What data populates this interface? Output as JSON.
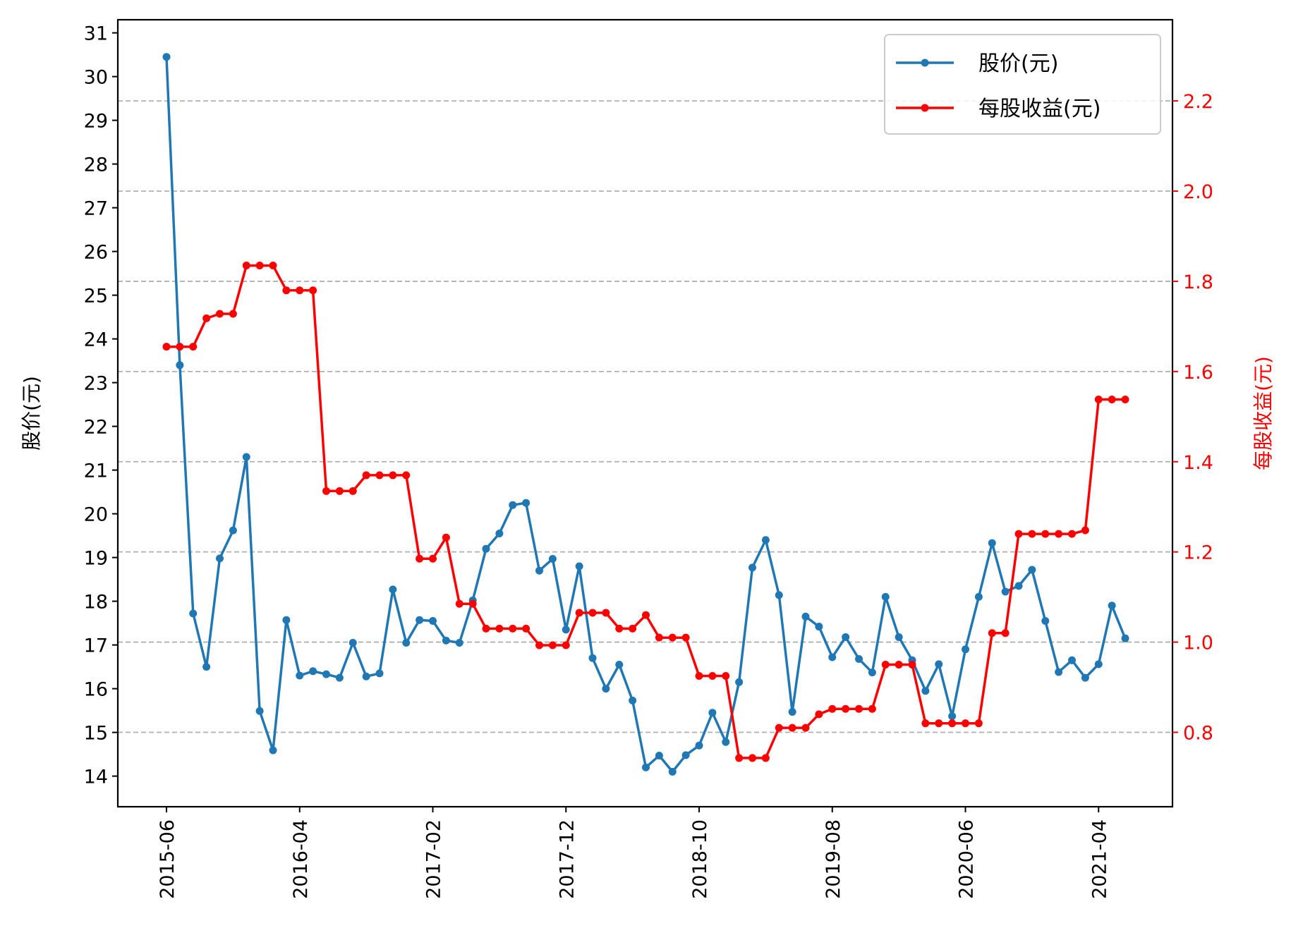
{
  "chart_data": {
    "type": "line",
    "x": [
      "2015-06",
      "2015-07",
      "2015-08",
      "2015-09",
      "2015-10",
      "2015-11",
      "2015-12",
      "2016-01",
      "2016-02",
      "2016-03",
      "2016-04",
      "2016-05",
      "2016-06",
      "2016-07",
      "2016-08",
      "2016-09",
      "2016-10",
      "2016-11",
      "2016-12",
      "2017-01",
      "2017-02",
      "2017-03",
      "2017-04",
      "2017-05",
      "2017-06",
      "2017-07",
      "2017-08",
      "2017-09",
      "2017-10",
      "2017-11",
      "2017-12",
      "2018-01",
      "2018-02",
      "2018-03",
      "2018-04",
      "2018-05",
      "2018-06",
      "2018-07",
      "2018-08",
      "2018-09",
      "2018-10",
      "2018-11",
      "2018-12",
      "2019-01",
      "2019-02",
      "2019-03",
      "2019-04",
      "2019-05",
      "2019-06",
      "2019-07",
      "2019-08",
      "2019-09",
      "2019-10",
      "2019-11",
      "2019-12",
      "2020-01",
      "2020-02",
      "2020-03",
      "2020-04",
      "2020-05",
      "2020-06",
      "2020-07",
      "2020-08",
      "2020-09",
      "2020-10",
      "2020-11",
      "2020-12",
      "2021-01",
      "2021-02",
      "2021-03",
      "2021-04",
      "2021-05",
      "2021-06"
    ],
    "xticks": [
      "2015-06",
      "2016-04",
      "2017-02",
      "2017-12",
      "2018-10",
      "2019-08",
      "2020-06",
      "2021-04"
    ],
    "series": [
      {
        "name": "股价(元)",
        "axis": "left",
        "color": "#1f77b4",
        "values": [
          30.45,
          23.4,
          17.72,
          16.5,
          18.98,
          19.62,
          21.3,
          15.49,
          14.59,
          17.57,
          16.3,
          16.4,
          16.33,
          16.25,
          17.05,
          16.28,
          16.35,
          18.27,
          17.05,
          17.57,
          17.55,
          17.1,
          17.05,
          18.02,
          19.2,
          19.55,
          20.2,
          20.25,
          18.7,
          18.97,
          17.35,
          18.8,
          16.7,
          16.0,
          16.55,
          15.73,
          14.2,
          14.47,
          14.1,
          14.48,
          14.7,
          15.45,
          14.78,
          16.15,
          18.77,
          19.4,
          18.14,
          15.47,
          17.65,
          17.42,
          16.72,
          17.18,
          16.68,
          16.37,
          18.1,
          17.18,
          16.65,
          15.95,
          16.56,
          15.37,
          16.9,
          18.1,
          19.33,
          18.22,
          18.35,
          18.72,
          17.55,
          16.38,
          16.65,
          16.25,
          16.56,
          17.9,
          17.15
        ]
      },
      {
        "name": "每股收益(元)",
        "axis": "right",
        "color": "#ff0000",
        "values": [
          1.655,
          1.655,
          1.655,
          1.718,
          1.728,
          1.728,
          1.835,
          1.835,
          1.835,
          1.78,
          1.78,
          1.78,
          1.335,
          1.335,
          1.335,
          1.37,
          1.37,
          1.37,
          1.37,
          1.185,
          1.185,
          1.232,
          1.085,
          1.085,
          1.03,
          1.03,
          1.03,
          1.03,
          0.993,
          0.993,
          0.993,
          1.065,
          1.065,
          1.065,
          1.03,
          1.03,
          1.06,
          1.01,
          1.01,
          1.01,
          0.925,
          0.925,
          0.925,
          0.743,
          0.743,
          0.743,
          0.81,
          0.81,
          0.81,
          0.84,
          0.852,
          0.852,
          0.852,
          0.852,
          0.95,
          0.95,
          0.95,
          0.82,
          0.82,
          0.82,
          0.82,
          0.82,
          1.02,
          1.02,
          1.24,
          1.24,
          1.24,
          1.24,
          1.24,
          1.248,
          1.538,
          1.538,
          1.538
        ]
      }
    ],
    "y_left": {
      "label": "股价(元)",
      "ylim": [
        13.3,
        31.3
      ],
      "ticks": [
        14,
        15,
        16,
        17,
        18,
        19,
        20,
        21,
        22,
        23,
        24,
        25,
        26,
        27,
        28,
        29,
        30,
        31
      ],
      "tick_labels": [
        "14",
        "15",
        "16",
        "17",
        "18",
        "19",
        "20",
        "21",
        "22",
        "23",
        "24",
        "25",
        "26",
        "27",
        "28",
        "29",
        "30",
        "31"
      ],
      "color": "#000000"
    },
    "y_right": {
      "label": "每股收益(元)",
      "ylim": [
        0.635,
        2.38
      ],
      "ticks": [
        0.8,
        1.0,
        1.2,
        1.4,
        1.6,
        1.8,
        2.0,
        2.2
      ],
      "tick_labels": [
        "0.8",
        "1.0",
        "1.2",
        "1.4",
        "1.6",
        "1.8",
        "2.0",
        "2.2"
      ],
      "color": "#ff0000"
    },
    "grid": "horizontal dashed at right-axis ticks",
    "legend_position": "upper right"
  }
}
